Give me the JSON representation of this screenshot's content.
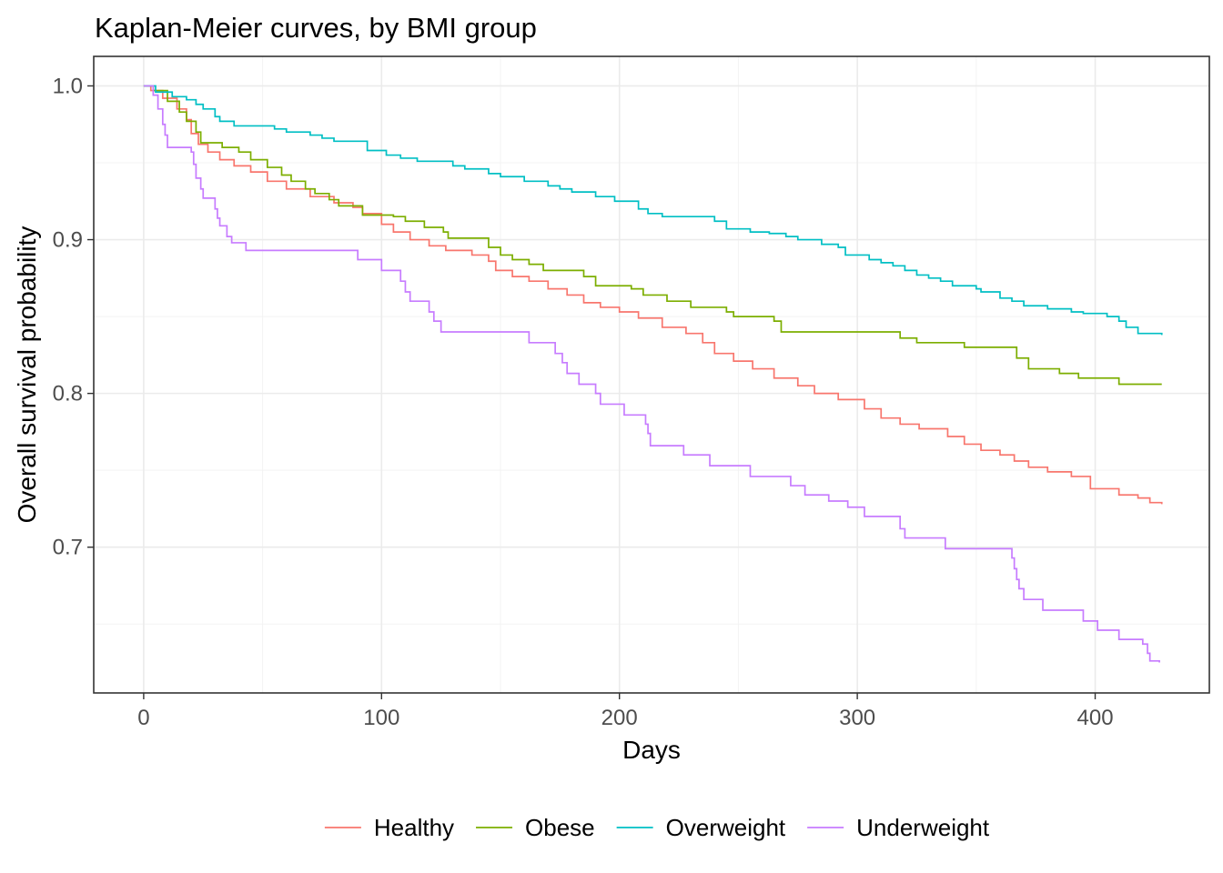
{
  "chart_data": {
    "type": "line",
    "step": true,
    "title": "Kaplan-Meier curves, by BMI group",
    "xlabel": "Days",
    "ylabel": "Overall survival probability",
    "xlim": [
      -21,
      448
    ],
    "ylim": [
      0.6052,
      1.0192
    ],
    "x_ticks": [
      0,
      100,
      200,
      300,
      400
    ],
    "y_ticks": [
      0.7,
      0.8,
      0.9,
      1.0
    ],
    "y_tick_labels": [
      "0.7",
      "0.8",
      "0.9",
      "1.0"
    ],
    "grid": true,
    "legend_position": "bottom",
    "series": [
      {
        "name": "Healthy",
        "color": "#F8766D",
        "points": [
          [
            0,
            1.0
          ],
          [
            3,
            0.997
          ],
          [
            8,
            0.992
          ],
          [
            14,
            0.985
          ],
          [
            18,
            0.978
          ],
          [
            20,
            0.969
          ],
          [
            23,
            0.962
          ],
          [
            27,
            0.957
          ],
          [
            32,
            0.952
          ],
          [
            38,
            0.948
          ],
          [
            45,
            0.944
          ],
          [
            52,
            0.938
          ],
          [
            60,
            0.933
          ],
          [
            70,
            0.928
          ],
          [
            80,
            0.924
          ],
          [
            88,
            0.921
          ],
          [
            92,
            0.917
          ],
          [
            100,
            0.91
          ],
          [
            105,
            0.905
          ],
          [
            112,
            0.9
          ],
          [
            120,
            0.896
          ],
          [
            127,
            0.893
          ],
          [
            134,
            0.893
          ],
          [
            138,
            0.89
          ],
          [
            145,
            0.886
          ],
          [
            148,
            0.88
          ],
          [
            155,
            0.876
          ],
          [
            162,
            0.873
          ],
          [
            170,
            0.868
          ],
          [
            178,
            0.864
          ],
          [
            185,
            0.859
          ],
          [
            192,
            0.856
          ],
          [
            200,
            0.853
          ],
          [
            208,
            0.849
          ],
          [
            218,
            0.843
          ],
          [
            228,
            0.839
          ],
          [
            235,
            0.833
          ],
          [
            240,
            0.826
          ],
          [
            248,
            0.821
          ],
          [
            256,
            0.816
          ],
          [
            265,
            0.81
          ],
          [
            275,
            0.805
          ],
          [
            282,
            0.8
          ],
          [
            292,
            0.796
          ],
          [
            303,
            0.79
          ],
          [
            310,
            0.784
          ],
          [
            318,
            0.78
          ],
          [
            326,
            0.777
          ],
          [
            338,
            0.772
          ],
          [
            345,
            0.767
          ],
          [
            352,
            0.763
          ],
          [
            360,
            0.76
          ],
          [
            366,
            0.756
          ],
          [
            372,
            0.752
          ],
          [
            380,
            0.749
          ],
          [
            390,
            0.746
          ],
          [
            398,
            0.738
          ],
          [
            406,
            0.738
          ],
          [
            410,
            0.734
          ],
          [
            418,
            0.732
          ],
          [
            423,
            0.729
          ],
          [
            428,
            0.728
          ]
        ]
      },
      {
        "name": "Obese",
        "color": "#7CAE00",
        "points": [
          [
            0,
            1.0
          ],
          [
            4,
            0.997
          ],
          [
            10,
            0.99
          ],
          [
            15,
            0.983
          ],
          [
            18,
            0.977
          ],
          [
            22,
            0.97
          ],
          [
            24,
            0.963
          ],
          [
            30,
            0.963
          ],
          [
            33,
            0.96
          ],
          [
            40,
            0.957
          ],
          [
            45,
            0.952
          ],
          [
            52,
            0.947
          ],
          [
            58,
            0.942
          ],
          [
            62,
            0.938
          ],
          [
            68,
            0.933
          ],
          [
            72,
            0.93
          ],
          [
            78,
            0.926
          ],
          [
            82,
            0.922
          ],
          [
            92,
            0.916
          ],
          [
            98,
            0.916
          ],
          [
            105,
            0.915
          ],
          [
            110,
            0.912
          ],
          [
            118,
            0.908
          ],
          [
            126,
            0.905
          ],
          [
            128,
            0.901
          ],
          [
            140,
            0.901
          ],
          [
            145,
            0.895
          ],
          [
            150,
            0.89
          ],
          [
            155,
            0.887
          ],
          [
            162,
            0.884
          ],
          [
            168,
            0.88
          ],
          [
            185,
            0.876
          ],
          [
            190,
            0.87
          ],
          [
            205,
            0.868
          ],
          [
            210,
            0.864
          ],
          [
            220,
            0.86
          ],
          [
            230,
            0.856
          ],
          [
            245,
            0.853
          ],
          [
            248,
            0.85
          ],
          [
            265,
            0.847
          ],
          [
            268,
            0.84
          ],
          [
            310,
            0.84
          ],
          [
            318,
            0.836
          ],
          [
            325,
            0.833
          ],
          [
            345,
            0.83
          ],
          [
            365,
            0.83
          ],
          [
            367,
            0.823
          ],
          [
            372,
            0.816
          ],
          [
            385,
            0.813
          ],
          [
            393,
            0.81
          ],
          [
            405,
            0.81
          ],
          [
            410,
            0.806
          ],
          [
            428,
            0.806
          ]
        ]
      },
      {
        "name": "Overweight",
        "color": "#00BFC4",
        "points": [
          [
            0,
            1.0
          ],
          [
            5,
            0.996
          ],
          [
            12,
            0.993
          ],
          [
            18,
            0.991
          ],
          [
            22,
            0.988
          ],
          [
            25,
            0.985
          ],
          [
            30,
            0.98
          ],
          [
            32,
            0.977
          ],
          [
            38,
            0.974
          ],
          [
            55,
            0.972
          ],
          [
            60,
            0.97
          ],
          [
            70,
            0.968
          ],
          [
            75,
            0.966
          ],
          [
            80,
            0.964
          ],
          [
            92,
            0.964
          ],
          [
            94,
            0.958
          ],
          [
            102,
            0.955
          ],
          [
            108,
            0.953
          ],
          [
            115,
            0.951
          ],
          [
            130,
            0.948
          ],
          [
            135,
            0.946
          ],
          [
            145,
            0.943
          ],
          [
            150,
            0.941
          ],
          [
            160,
            0.938
          ],
          [
            170,
            0.935
          ],
          [
            175,
            0.933
          ],
          [
            180,
            0.931
          ],
          [
            190,
            0.928
          ],
          [
            198,
            0.925
          ],
          [
            208,
            0.92
          ],
          [
            212,
            0.917
          ],
          [
            218,
            0.915
          ],
          [
            240,
            0.912
          ],
          [
            245,
            0.907
          ],
          [
            255,
            0.905
          ],
          [
            263,
            0.904
          ],
          [
            270,
            0.902
          ],
          [
            275,
            0.9
          ],
          [
            285,
            0.897
          ],
          [
            292,
            0.895
          ],
          [
            295,
            0.89
          ],
          [
            305,
            0.887
          ],
          [
            310,
            0.885
          ],
          [
            315,
            0.883
          ],
          [
            320,
            0.88
          ],
          [
            325,
            0.877
          ],
          [
            330,
            0.875
          ],
          [
            335,
            0.873
          ],
          [
            340,
            0.87
          ],
          [
            350,
            0.868
          ],
          [
            352,
            0.866
          ],
          [
            360,
            0.862
          ],
          [
            365,
            0.86
          ],
          [
            370,
            0.857
          ],
          [
            380,
            0.855
          ],
          [
            390,
            0.853
          ],
          [
            395,
            0.852
          ],
          [
            405,
            0.85
          ],
          [
            410,
            0.847
          ],
          [
            413,
            0.843
          ],
          [
            418,
            0.839
          ],
          [
            428,
            0.838
          ]
        ]
      },
      {
        "name": "Underweight",
        "color": "#C77CFF",
        "points": [
          [
            0,
            1.0
          ],
          [
            4,
            0.994
          ],
          [
            6,
            0.985
          ],
          [
            8,
            0.975
          ],
          [
            9,
            0.968
          ],
          [
            10,
            0.96
          ],
          [
            20,
            0.957
          ],
          [
            21,
            0.949
          ],
          [
            22,
            0.94
          ],
          [
            24,
            0.933
          ],
          [
            25,
            0.927
          ],
          [
            30,
            0.92
          ],
          [
            31,
            0.914
          ],
          [
            32,
            0.909
          ],
          [
            35,
            0.902
          ],
          [
            37,
            0.898
          ],
          [
            43,
            0.893
          ],
          [
            90,
            0.887
          ],
          [
            100,
            0.88
          ],
          [
            108,
            0.873
          ],
          [
            110,
            0.866
          ],
          [
            112,
            0.86
          ],
          [
            120,
            0.853
          ],
          [
            122,
            0.847
          ],
          [
            125,
            0.84
          ],
          [
            162,
            0.833
          ],
          [
            173,
            0.826
          ],
          [
            176,
            0.82
          ],
          [
            178,
            0.813
          ],
          [
            183,
            0.806
          ],
          [
            190,
            0.8
          ],
          [
            192,
            0.793
          ],
          [
            202,
            0.786
          ],
          [
            211,
            0.78
          ],
          [
            212,
            0.774
          ],
          [
            213,
            0.766
          ],
          [
            227,
            0.76
          ],
          [
            238,
            0.753
          ],
          [
            255,
            0.746
          ],
          [
            272,
            0.74
          ],
          [
            278,
            0.734
          ],
          [
            288,
            0.73
          ],
          [
            296,
            0.726
          ],
          [
            303,
            0.72
          ],
          [
            318,
            0.712
          ],
          [
            320,
            0.706
          ],
          [
            337,
            0.699
          ],
          [
            364,
            0.699
          ],
          [
            365,
            0.693
          ],
          [
            366,
            0.686
          ],
          [
            367,
            0.679
          ],
          [
            368,
            0.673
          ],
          [
            370,
            0.666
          ],
          [
            378,
            0.659
          ],
          [
            395,
            0.652
          ],
          [
            401,
            0.646
          ],
          [
            410,
            0.64
          ],
          [
            420,
            0.637
          ],
          [
            422,
            0.631
          ],
          [
            423,
            0.626
          ],
          [
            427,
            0.625
          ]
        ]
      }
    ]
  }
}
